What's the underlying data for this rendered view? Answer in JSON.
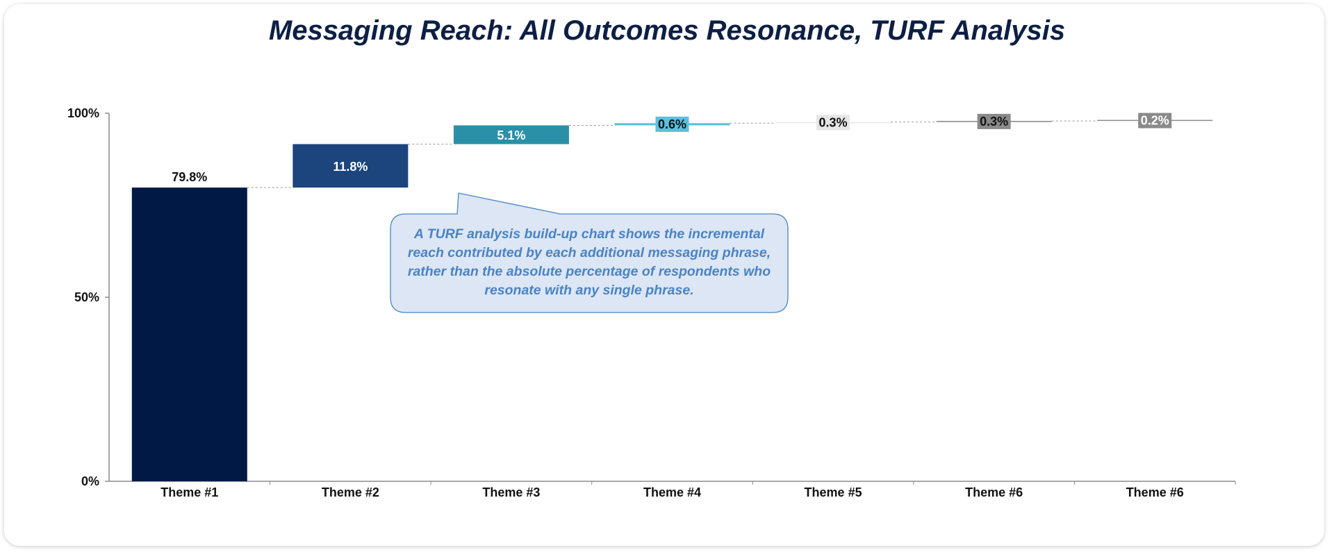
{
  "chart_data": {
    "type": "bar",
    "subtype": "waterfall",
    "title": "Messaging Reach: All Outcomes Resonance, TURF Analysis",
    "categories": [
      "Theme #1",
      "Theme #2",
      "Theme #3",
      "Theme #4",
      "Theme #5",
      "Theme #6",
      "Theme #6"
    ],
    "values": [
      79.8,
      11.8,
      5.1,
      0.6,
      0.3,
      0.3,
      0.2
    ],
    "labels": [
      "79.8%",
      "11.8%",
      "5.1%",
      "0.6%",
      "0.3%",
      "0.3%",
      "0.2%"
    ],
    "ylim": [
      0,
      100
    ],
    "yticks": [
      "0%",
      "50%",
      "100%"
    ],
    "ytick_values": [
      0,
      50,
      100
    ],
    "colors": [
      "#001a45",
      "#1b457c",
      "#2a90a8",
      "#5bc0df",
      "#e6e6e6",
      "#8a8a8a",
      "#8a8a8a"
    ],
    "label_colors": [
      "#111111",
      "#ffffff",
      "#ffffff",
      "#111111",
      "#111111",
      "#111111",
      "#ffffff"
    ],
    "grid": false,
    "connectors": true
  },
  "callout": {
    "text": "A TURF analysis build-up chart shows the incremental reach contributed by each additional messaging phrase, rather than the absolute percentage of respondents who resonate with any single phrase.",
    "fill": "#dce6f4",
    "border": "#4a83c4",
    "text_color": "#4a83c4"
  },
  "colors": {
    "title": "#0d1f44"
  }
}
